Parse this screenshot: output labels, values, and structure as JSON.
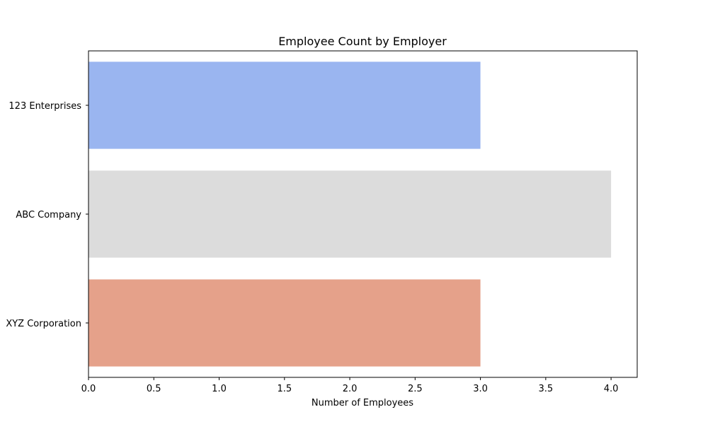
{
  "chart_data": {
    "type": "bar",
    "orientation": "horizontal",
    "title": "Employee Count by Employer",
    "xlabel": "Number of Employees",
    "ylabel": "",
    "categories": [
      "123 Enterprises",
      "ABC Company",
      "XYZ Corporation"
    ],
    "values": [
      3,
      4,
      3
    ],
    "colors": [
      "#9ab5f0",
      "#dcdcdc",
      "#e5a18a"
    ],
    "xlim": [
      0,
      4.2
    ],
    "xticks": [
      0,
      0.5,
      1,
      1.5,
      2,
      2.5,
      3,
      3.5,
      4
    ],
    "xtick_labels": [
      "0.0",
      "0.5",
      "1.0",
      "1.5",
      "2.0",
      "2.5",
      "3.0",
      "3.5",
      "4.0"
    ],
    "grid": false,
    "legend": "none"
  }
}
